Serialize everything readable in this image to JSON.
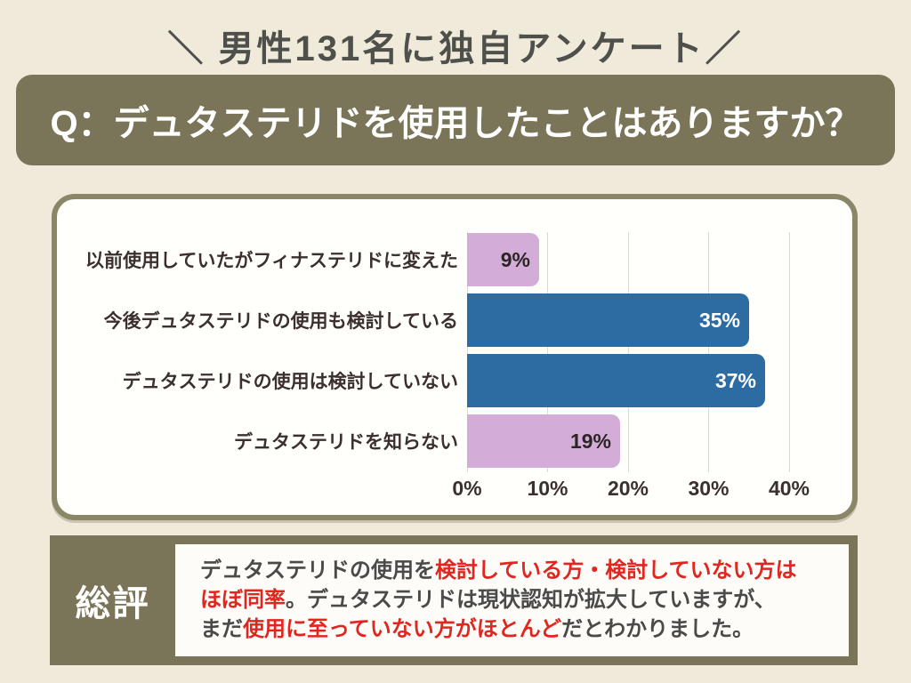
{
  "page": {
    "background": "#EFEAD9",
    "header_text": "＼ 男性131名に独自アンケート／",
    "question": "Q：デュタステリドを使用したことはありますか？"
  },
  "colors": {
    "olive": "#7A7458",
    "card_border": "#8A8668",
    "card_bg": "#FFFFFC",
    "grid": "#DCDAD5",
    "category_label": "#3C2F2F",
    "summary_dark": "#4A4A48",
    "summary_red": "#E1261F"
  },
  "chart_data": {
    "type": "bar",
    "orientation": "horizontal",
    "categories": [
      "以前使用していたがフィナステリドに変えた",
      "今後デュタステリドの使用も検討している",
      "デュタステリドの使用は検討していない",
      "デュタステリドを知らない"
    ],
    "values": [
      9,
      35,
      37,
      19
    ],
    "value_labels": [
      "9%",
      "35%",
      "37%",
      "19%"
    ],
    "bar_colors": [
      "#D4ACD8",
      "#2D6CA2",
      "#2D6CA2",
      "#D4ACD8"
    ],
    "value_label_colors": [
      "#2B2525",
      "#FFFFFF",
      "#FFFFFF",
      "#2B2525"
    ],
    "x_ticks": [
      "0%",
      "10%",
      "20%",
      "30%",
      "40%"
    ],
    "xlim": [
      0,
      40
    ],
    "grid": true,
    "legend": false,
    "title": ""
  },
  "summary": {
    "heading": "総評",
    "lines": [
      [
        {
          "text": "デュタステリドの使用を",
          "color": "dark"
        },
        {
          "text": "検討している方・検討していない方は",
          "color": "red"
        }
      ],
      [
        {
          "text": "ほぼ同率",
          "color": "red"
        },
        {
          "text": "。デュタステリドは現状認知が拡大していますが、",
          "color": "dark"
        }
      ],
      [
        {
          "text": "まだ",
          "color": "dark"
        },
        {
          "text": "使用に至っていない方がほとんど",
          "color": "red"
        },
        {
          "text": "だとわかりました。",
          "color": "dark"
        }
      ]
    ]
  }
}
